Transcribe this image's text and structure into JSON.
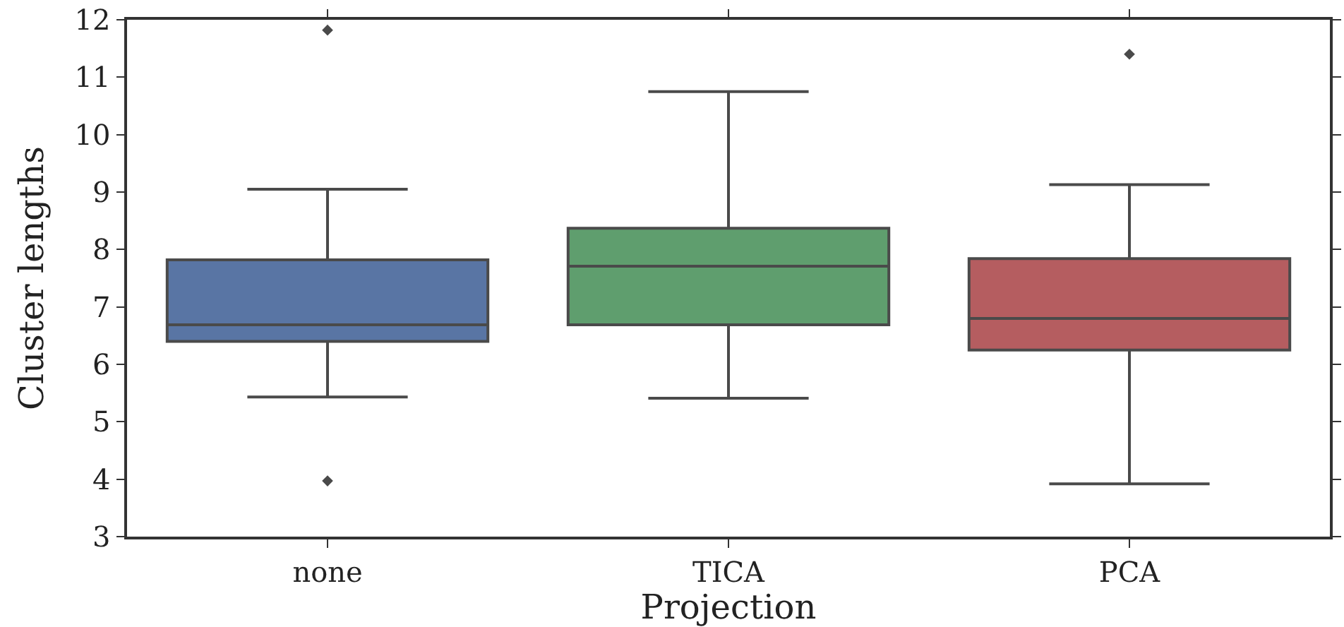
{
  "chart_data": {
    "type": "box",
    "xlabel": "Projection",
    "ylabel": "Cluster lengths",
    "categories": [
      "none",
      "TICA",
      "PCA"
    ],
    "colors": [
      "#5975a4",
      "#5f9e6e",
      "#b55d60"
    ],
    "boxes": [
      {
        "low": 5.43,
        "q1": 6.4,
        "median": 6.69,
        "q3": 7.82,
        "high": 9.05,
        "outliers": [
          11.82,
          3.97
        ]
      },
      {
        "low": 5.41,
        "q1": 6.69,
        "median": 7.71,
        "q3": 8.37,
        "high": 10.75
      },
      {
        "low": 3.92,
        "q1": 6.25,
        "median": 6.8,
        "q3": 7.84,
        "high": 9.13,
        "outliers": [
          11.4
        ]
      }
    ],
    "ylim": [
      3,
      12
    ],
    "yticks": [
      3,
      4,
      5,
      6,
      7,
      8,
      9,
      10,
      11,
      12
    ],
    "legend": false
  }
}
